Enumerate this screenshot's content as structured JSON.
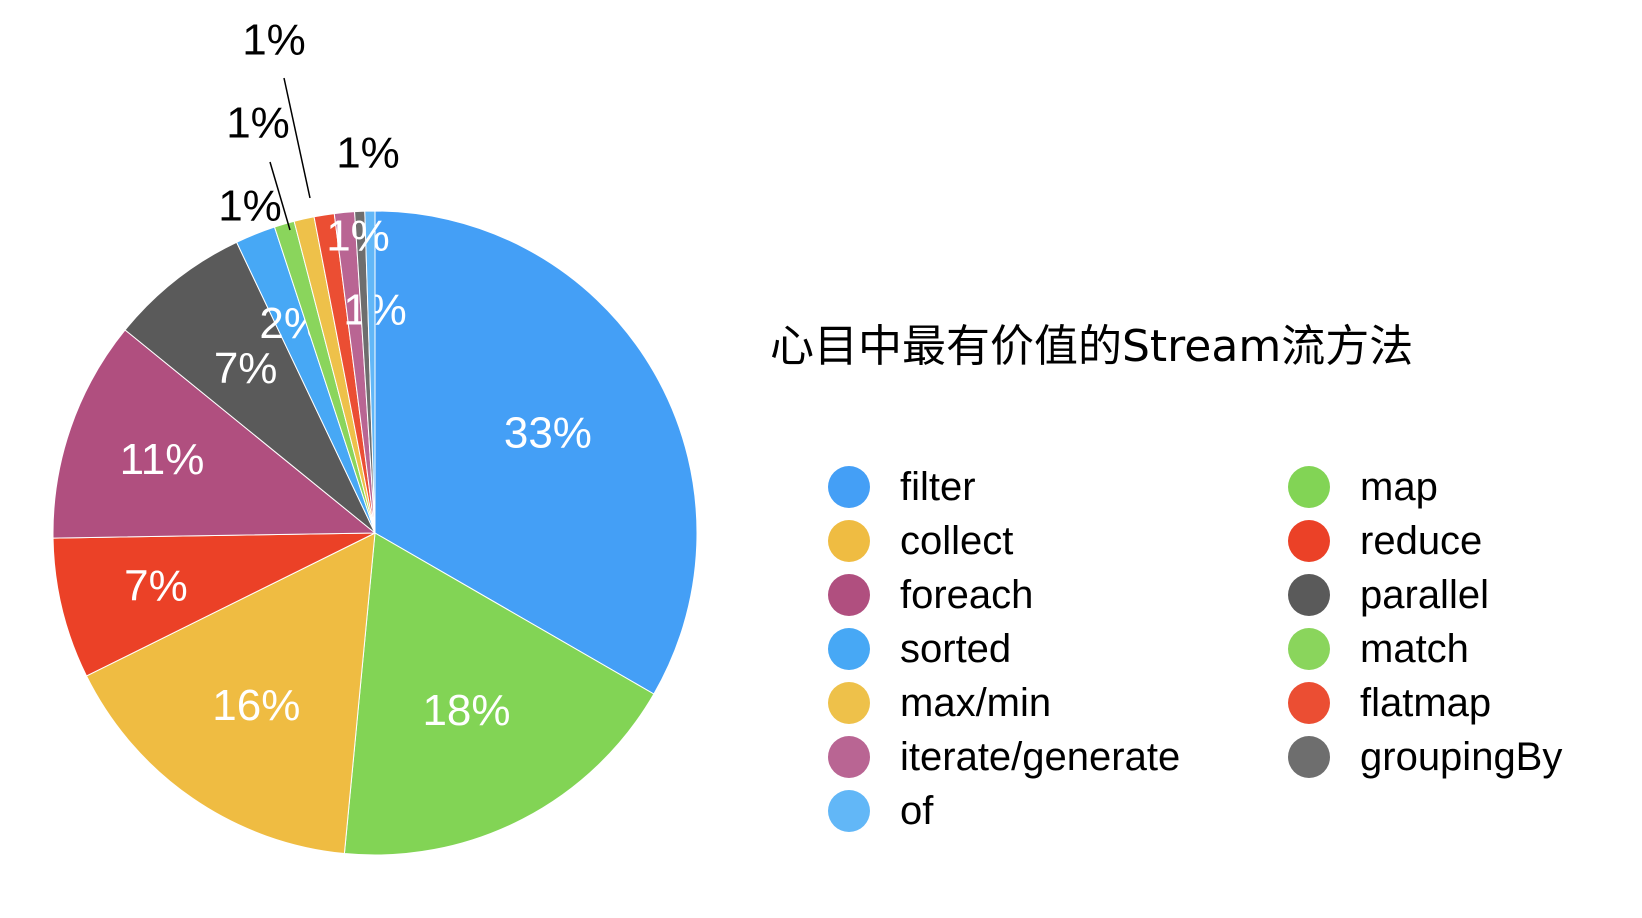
{
  "chart_data": {
    "type": "pie",
    "title": "心目中最有价值的Stream流方法",
    "legend_placement": "right",
    "slices": [
      {
        "name": "filter",
        "value": 33,
        "label": "33%",
        "color": "#449FF6"
      },
      {
        "name": "map",
        "value": 18,
        "label": "18%",
        "color": "#82D455"
      },
      {
        "name": "collect",
        "value": 16,
        "label": "16%",
        "color": "#EFBC42"
      },
      {
        "name": "reduce",
        "value": 7,
        "label": "7%",
        "color": "#EB4127"
      },
      {
        "name": "foreach",
        "value": 11,
        "label": "11%",
        "color": "#B04F7F"
      },
      {
        "name": "parallel",
        "value": 7,
        "label": "7%",
        "color": "#5A5A5A"
      },
      {
        "name": "sorted",
        "value": 2,
        "label": "2%",
        "color": "#47A8F5"
      },
      {
        "name": "match",
        "value": 1,
        "label": "1%",
        "color": "#8AD55C"
      },
      {
        "name": "max/min",
        "value": 1,
        "label": "1%",
        "color": "#EEC14A"
      },
      {
        "name": "flatmap",
        "value": 1,
        "label": "1%",
        "color": "#EB4E33"
      },
      {
        "name": "iterate/generate",
        "value": 1,
        "label": "1%",
        "color": "#B96593"
      },
      {
        "name": "groupingBy",
        "value": 0.5,
        "label": "1%",
        "color": "#6E6E6E"
      },
      {
        "name": "of",
        "value": 0.5,
        "label": "1%",
        "color": "#62B7F7"
      }
    ],
    "legend_order": [
      "filter",
      "map",
      "collect",
      "reduce",
      "foreach",
      "parallel",
      "sorted",
      "match",
      "max/min",
      "flatmap",
      "iterate/generate",
      "groupingBy",
      "of"
    ]
  }
}
